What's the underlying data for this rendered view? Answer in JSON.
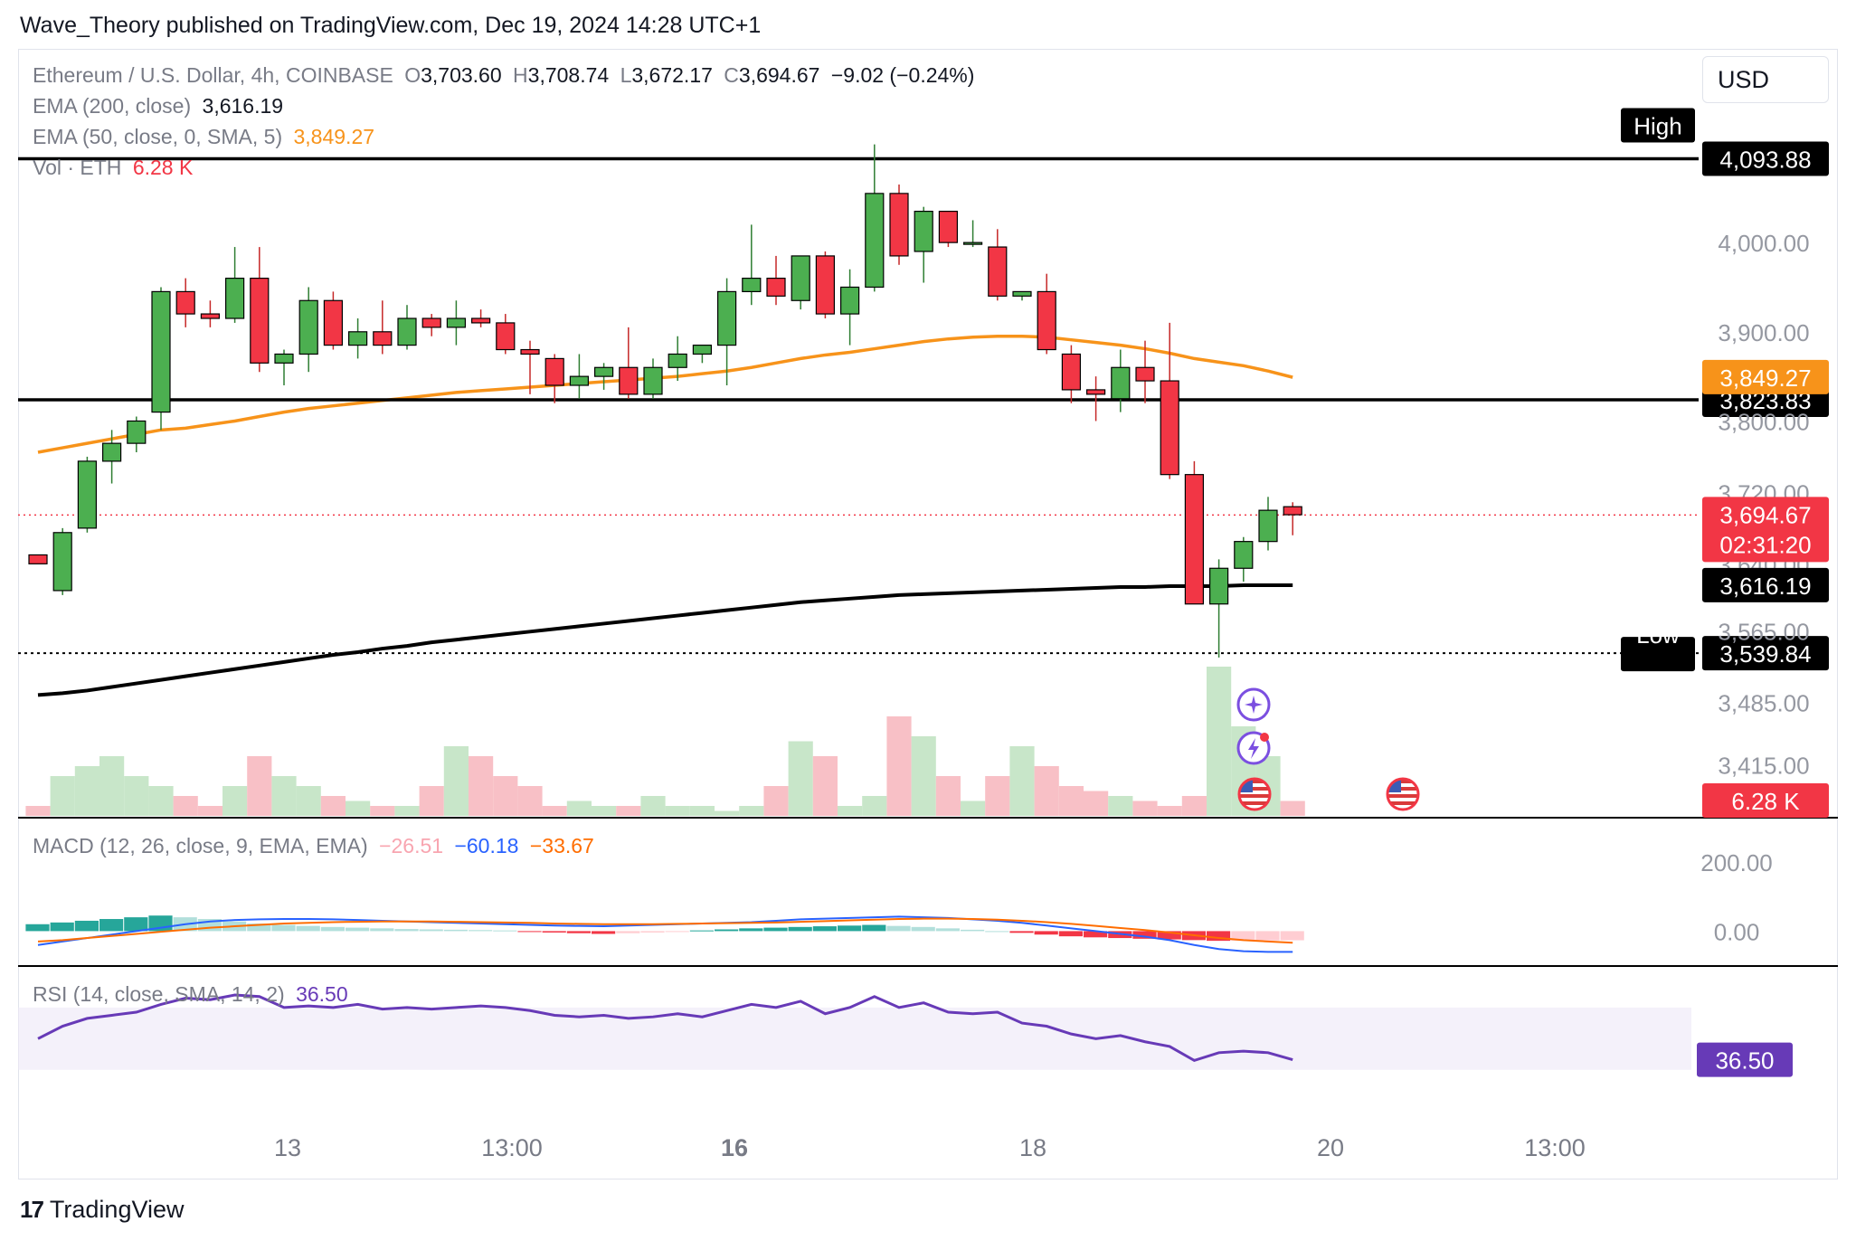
{
  "header": {
    "published_by": "Wave_Theory published on TradingView.com, Dec 19, 2024 14:28 UTC+1"
  },
  "symbol": {
    "name": "Ethereum / U.S. Dollar, 4h, COINBASE",
    "open_label": "O",
    "open": "3,703.60",
    "high_label": "H",
    "high": "3,708.74",
    "low_label": "L",
    "low": "3,672.17",
    "close_label": "C",
    "close": "3,694.67",
    "change": "−9.02 (−0.24%)"
  },
  "indicators": {
    "ema200_label": "EMA (200, close)",
    "ema200_value": "3,616.19",
    "ema50_label": "EMA (50, close, 0, SMA, 5)",
    "ema50_value": "3,849.27",
    "vol_label": "Vol · ETH",
    "vol_value": "6.28 K",
    "macd_label": "MACD (12, 26, close, 9, EMA, EMA)",
    "macd_hist": "−26.51",
    "macd_line": "−60.18",
    "macd_signal": "−33.67",
    "rsi_label": "RSI (14, close, SMA, 14, 2)",
    "rsi_value": "36.50"
  },
  "currency": "USD",
  "colors": {
    "up": "#4caf50",
    "down": "#f23645",
    "ema50": "#f7931a",
    "ema200": "#000000",
    "macd": "#2962ff",
    "signal": "#ff6d00",
    "rsi": "#673ab7",
    "vol_up": "#c8e6c9",
    "vol_down": "#f8c0c6"
  },
  "icons": [
    "idea-icon",
    "flash-icon",
    "us-flag-icon",
    "us-flag-icon"
  ],
  "footer": {
    "brand": "TradingView"
  },
  "chart_data": {
    "type": "candlestick",
    "timeframe": "4h",
    "x_ticks": [
      "13",
      "13:00",
      "16",
      "18",
      "20",
      "13:00"
    ],
    "y_ticks": [
      "4,000.00",
      "3,900.00",
      "3,800.00",
      "3,720.00",
      "3,640.00",
      "3,565.00",
      "3,485.00",
      "3,415.00"
    ],
    "ylim": [
      3390,
      4140
    ],
    "candles": [
      [
        3650,
        3650,
        3640,
        3640
      ],
      [
        3610,
        3680,
        3605,
        3675
      ],
      [
        3680,
        3760,
        3675,
        3755
      ],
      [
        3755,
        3790,
        3730,
        3775
      ],
      [
        3775,
        3805,
        3765,
        3800
      ],
      [
        3810,
        3950,
        3790,
        3945
      ],
      [
        3945,
        3960,
        3905,
        3920
      ],
      [
        3920,
        3935,
        3905,
        3915
      ],
      [
        3915,
        3995,
        3910,
        3960
      ],
      [
        3960,
        3995,
        3855,
        3865
      ],
      [
        3865,
        3880,
        3840,
        3875
      ],
      [
        3875,
        3950,
        3855,
        3935
      ],
      [
        3935,
        3945,
        3880,
        3885
      ],
      [
        3885,
        3915,
        3870,
        3900
      ],
      [
        3900,
        3935,
        3875,
        3885
      ],
      [
        3885,
        3930,
        3880,
        3915
      ],
      [
        3915,
        3920,
        3895,
        3905
      ],
      [
        3905,
        3935,
        3885,
        3915
      ],
      [
        3915,
        3925,
        3905,
        3910
      ],
      [
        3910,
        3920,
        3875,
        3880
      ],
      [
        3880,
        3890,
        3830,
        3875
      ],
      [
        3870,
        3875,
        3820,
        3840
      ],
      [
        3840,
        3875,
        3825,
        3850
      ],
      [
        3850,
        3865,
        3835,
        3860
      ],
      [
        3860,
        3905,
        3825,
        3830
      ],
      [
        3830,
        3870,
        3825,
        3860
      ],
      [
        3860,
        3895,
        3845,
        3875
      ],
      [
        3875,
        3885,
        3865,
        3885
      ],
      [
        3885,
        3960,
        3840,
        3945
      ],
      [
        3945,
        4020,
        3930,
        3960
      ],
      [
        3960,
        3985,
        3930,
        3940
      ],
      [
        3935,
        3985,
        3925,
        3985
      ],
      [
        3985,
        3990,
        3915,
        3920
      ],
      [
        3920,
        3970,
        3885,
        3950
      ],
      [
        3950,
        4110,
        3945,
        4055
      ],
      [
        4055,
        4065,
        3975,
        3985
      ],
      [
        3990,
        4040,
        3955,
        4035
      ],
      [
        4035,
        4035,
        3995,
        4000
      ],
      [
        4000,
        4025,
        3995,
        4000
      ],
      [
        3995,
        4015,
        3935,
        3940
      ],
      [
        3940,
        3945,
        3935,
        3945
      ],
      [
        3945,
        3965,
        3875,
        3880
      ],
      [
        3875,
        3885,
        3820,
        3835
      ],
      [
        3835,
        3850,
        3800,
        3830
      ],
      [
        3825,
        3880,
        3810,
        3860
      ],
      [
        3860,
        3890,
        3820,
        3845
      ],
      [
        3845,
        3910,
        3735,
        3740
      ],
      [
        3740,
        3755,
        3595,
        3595
      ],
      [
        3595,
        3645,
        3535,
        3635
      ],
      [
        3635,
        3670,
        3620,
        3665
      ],
      [
        3665,
        3715,
        3655,
        3700
      ],
      [
        3704,
        3709,
        3672,
        3695
      ]
    ],
    "ema50": [
      3765,
      3770,
      3775,
      3780,
      3785,
      3790,
      3792,
      3796,
      3800,
      3805,
      3810,
      3814,
      3817,
      3820,
      3823,
      3826,
      3829,
      3832,
      3834,
      3836,
      3838,
      3840,
      3842,
      3844,
      3846,
      3848,
      3850,
      3853,
      3856,
      3860,
      3865,
      3870,
      3874,
      3877,
      3881,
      3885,
      3889,
      3892,
      3894,
      3895,
      3895,
      3894,
      3891,
      3888,
      3885,
      3881,
      3876,
      3870,
      3866,
      3862,
      3856,
      3849
    ],
    "ema200": [
      3493,
      3495,
      3498,
      3502,
      3506,
      3510,
      3514,
      3518,
      3522,
      3526,
      3530,
      3534,
      3538,
      3541,
      3545,
      3548,
      3552,
      3555,
      3558,
      3561,
      3564,
      3567,
      3570,
      3573,
      3576,
      3579,
      3582,
      3585,
      3588,
      3591,
      3594,
      3597,
      3599,
      3601,
      3603,
      3605,
      3606,
      3607,
      3608,
      3609,
      3610,
      3611,
      3612,
      3613,
      3614,
      3614,
      3615,
      3615,
      3615,
      3616,
      3616,
      3616
    ],
    "levels": [
      {
        "label": "High",
        "value": "4,093.88",
        "price": 4093.88
      },
      {
        "label": "",
        "value": "3,823.83",
        "price": 3823.83
      },
      {
        "label": "Low",
        "value": "3,539.84",
        "price": 3539.84
      }
    ],
    "price_labels": {
      "ema50": "3,849.27",
      "last": "3,694.67",
      "countdown": "02:31:20",
      "ema200": "3,616.19",
      "volume": "6.28 K"
    },
    "volume_relative": [
      0.1,
      0.4,
      0.5,
      0.6,
      0.4,
      0.3,
      0.2,
      0.1,
      0.3,
      0.6,
      0.4,
      0.3,
      0.2,
      0.15,
      0.1,
      0.1,
      0.3,
      0.7,
      0.6,
      0.4,
      0.3,
      0.1,
      0.15,
      0.1,
      0.1,
      0.2,
      0.1,
      0.1,
      0.05,
      0.1,
      0.3,
      0.75,
      0.6,
      0.1,
      0.2,
      1.0,
      0.8,
      0.4,
      0.15,
      0.4,
      0.7,
      0.5,
      0.3,
      0.25,
      0.2,
      0.15,
      0.1,
      0.2,
      1.5,
      0.9,
      0.6,
      0.15
    ],
    "macd_ticks": [
      "200.00",
      "0.00"
    ],
    "macd_ylim": [
      -80,
      260
    ],
    "macd_hist": [
      20,
      25,
      30,
      35,
      40,
      45,
      40,
      35,
      28,
      22,
      18,
      15,
      12,
      10,
      8,
      6,
      5,
      4,
      3,
      2,
      -2,
      -4,
      -6,
      -8,
      -6,
      -4,
      -2,
      2,
      5,
      8,
      10,
      12,
      14,
      16,
      18,
      15,
      12,
      8,
      4,
      0,
      -5,
      -10,
      -15,
      -18,
      -20,
      -22,
      -24,
      -26,
      -28,
      -28,
      -27,
      -26.51
    ],
    "macd_line": [
      -40,
      -30,
      -20,
      -10,
      0,
      10,
      20,
      28,
      32,
      34,
      35,
      35,
      34,
      32,
      30,
      28,
      26,
      24,
      22,
      20,
      18,
      16,
      15,
      14,
      16,
      18,
      20,
      22,
      24,
      26,
      30,
      34,
      36,
      38,
      40,
      42,
      40,
      38,
      34,
      30,
      24,
      16,
      8,
      0,
      -8,
      -16,
      -26,
      -40,
      -52,
      -58,
      -60,
      -60.18
    ],
    "macd_signal": [
      -30,
      -26,
      -20,
      -14,
      -8,
      -2,
      4,
      10,
      14,
      18,
      22,
      24,
      26,
      27,
      28,
      28,
      28,
      27,
      26,
      25,
      24,
      22,
      21,
      20,
      20,
      20,
      21,
      22,
      23,
      24,
      25,
      27,
      29,
      31,
      33,
      35,
      36,
      36,
      35,
      33,
      30,
      26,
      21,
      15,
      9,
      3,
      -4,
      -12,
      -20,
      -26,
      -30,
      -33.67
    ],
    "rsi_ylim": [
      0,
      100
    ],
    "rsi": [
      50,
      58,
      63,
      65,
      67,
      72,
      76,
      75,
      78,
      77,
      70,
      71,
      70,
      72,
      69,
      70,
      69,
      70,
      71,
      70,
      68,
      65,
      64,
      65,
      63,
      64,
      66,
      64,
      68,
      72,
      70,
      74,
      66,
      70,
      77,
      70,
      73,
      67,
      66,
      67,
      60,
      58,
      53,
      50,
      52,
      48,
      45,
      36,
      41,
      42,
      41,
      36.5
    ]
  }
}
